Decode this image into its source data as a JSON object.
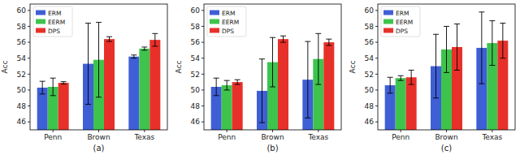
{
  "chart_data": [
    {
      "type": "bar",
      "title": "(a)",
      "y_label": "Acc",
      "categories": [
        "Penn",
        "Brown",
        "Texas"
      ],
      "series": [
        {
          "name": "ERM",
          "color": "#3f5fd6",
          "values": [
            50.3,
            53.3,
            54.2
          ],
          "errors": [
            0.8,
            5.1,
            0.2
          ]
        },
        {
          "name": "EERM",
          "color": "#3ec44d",
          "values": [
            50.4,
            53.8,
            55.2
          ],
          "errors": [
            1.1,
            4.7,
            0.2
          ]
        },
        {
          "name": "DPS",
          "color": "#e8302a",
          "values": [
            50.9,
            56.4,
            56.3
          ],
          "errors": [
            0.15,
            0.3,
            0.8
          ]
        }
      ],
      "ylim": [
        45,
        60.8
      ],
      "yticks": [
        46,
        48,
        50,
        52,
        54,
        56,
        58,
        60
      ],
      "grid": false,
      "legend": "upper left"
    },
    {
      "type": "bar",
      "title": "(b)",
      "y_label": "Acc",
      "categories": [
        "Penn",
        "Brown",
        "Texas"
      ],
      "series": [
        {
          "name": "ERM",
          "color": "#3f5fd6",
          "values": [
            50.4,
            49.9,
            51.3
          ],
          "errors": [
            1.1,
            4.0,
            4.8
          ]
        },
        {
          "name": "EERM",
          "color": "#3ec44d",
          "values": [
            50.6,
            53.5,
            53.9
          ],
          "errors": [
            0.6,
            3.1,
            3.2
          ]
        },
        {
          "name": "DPS",
          "color": "#e8302a",
          "values": [
            51.0,
            56.4,
            56.0
          ],
          "errors": [
            0.3,
            0.4,
            0.4
          ]
        }
      ],
      "ylim": [
        45,
        60.8
      ],
      "yticks": [
        46,
        48,
        50,
        52,
        54,
        56,
        58,
        60
      ],
      "grid": false,
      "legend": "upper left"
    },
    {
      "type": "bar",
      "title": "(c)",
      "y_label": "Acc",
      "categories": [
        "Penn",
        "Brown",
        "Texas"
      ],
      "series": [
        {
          "name": "ERM",
          "color": "#3f5fd6",
          "values": [
            50.6,
            53.0,
            55.3
          ],
          "errors": [
            1.0,
            4.0,
            4.5
          ]
        },
        {
          "name": "EERM",
          "color": "#3ec44d",
          "values": [
            51.5,
            55.1,
            55.9
          ],
          "errors": [
            0.3,
            2.9,
            2.8
          ]
        },
        {
          "name": "DPS",
          "color": "#e8302a",
          "values": [
            51.6,
            55.4,
            56.2
          ],
          "errors": [
            0.9,
            2.9,
            2.2
          ]
        }
      ],
      "ylim": [
        45,
        60.8
      ],
      "yticks": [
        46,
        48,
        50,
        52,
        54,
        56,
        58,
        60
      ],
      "grid": false,
      "legend": "upper left"
    }
  ]
}
